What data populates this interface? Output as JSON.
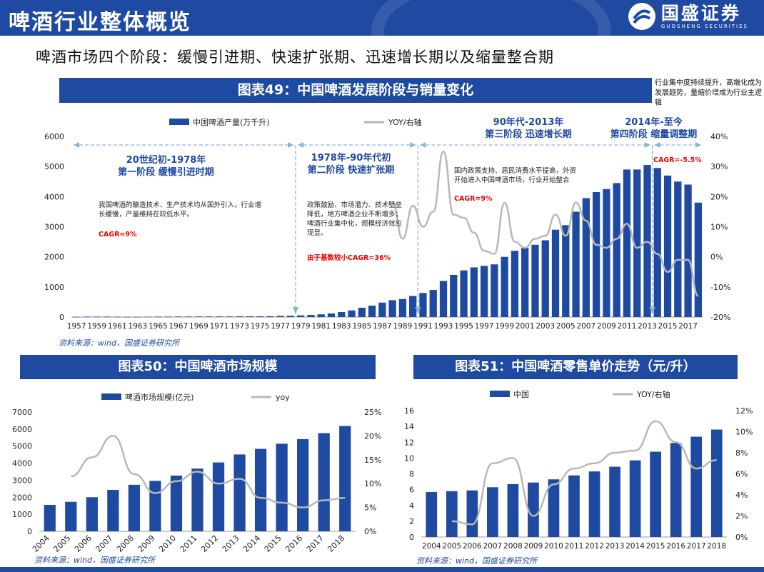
{
  "header": {
    "title": "啤酒行业整体概览",
    "logo_name": "国盛证券",
    "logo_en": "GUOSHENG SECURITIES",
    "colors": {
      "brand": "#1f4aa1",
      "accent_red": "#e00000",
      "line": "#b8b8b8"
    }
  },
  "subtitle": "啤酒市场四个阶段：缓慢引进期、快速扩张期、迅速增长期以及缩量整合期",
  "side_note": "行业集中度持续提升，高端化成为发展趋势，量缩价增成为行业主逻辑",
  "fig49": {
    "banner": "图表49：中国啤酒发展阶段与销量变化",
    "source": "资料来源：wind，国盛证券研究所",
    "stages": [
      {
        "title": "20世纪初-1978年",
        "sub": "第一阶段 缓慢引进时期",
        "note": "我国啤酒的酿造技术、生产技术均从国外引入，行业增长缓慢，产量维持在较低水平。",
        "cagr": "CAGR=9%"
      },
      {
        "title": "1978年-90年代初",
        "sub": "第二阶段 快速扩张期",
        "note": "政策鼓励、市场潜力、技术壁垒降低，地方啤酒企业不断增多；啤酒行业集中化，规模经济效应现显。",
        "cagr": "由于基数较小CAGR=36%"
      },
      {
        "title": "90年代-2013年",
        "sub": "第三阶段 迅速增长期",
        "note": "国内政策支持、居民消费水平提高，外资开始进入中国啤酒市场，行业开始整合",
        "cagr": "CAGR=9%"
      },
      {
        "title": "2014年-至今",
        "sub": "第四阶段 缩量调整期",
        "note": "",
        "cagr": "CAGR=-5.5%"
      }
    ]
  },
  "fig50": {
    "banner": "图表50：中国啤酒市场规模",
    "source": "资料来源：wind，国盛证券研究所"
  },
  "fig51": {
    "banner": "图表51：中国啤酒零售单价走势（元/升）",
    "source": "资料来源：wind，国盛证券研究所"
  },
  "chart_data": [
    {
      "type": "bar",
      "title": "图表49：中国啤酒发展阶段与销量变化",
      "categories": [
        1957,
        1958,
        1959,
        1960,
        1961,
        1962,
        1963,
        1964,
        1965,
        1966,
        1967,
        1968,
        1969,
        1970,
        1971,
        1972,
        1973,
        1974,
        1975,
        1976,
        1977,
        1978,
        1979,
        1980,
        1981,
        1982,
        1983,
        1984,
        1985,
        1986,
        1987,
        1988,
        1989,
        1990,
        1991,
        1992,
        1993,
        1994,
        1995,
        1996,
        1997,
        1998,
        1999,
        2000,
        2001,
        2002,
        2003,
        2004,
        2005,
        2006,
        2007,
        2008,
        2009,
        2010,
        2011,
        2012,
        2013,
        2014,
        2015,
        2016,
        2017,
        2018
      ],
      "x_tick_labels": [
        "1957",
        "1959",
        "1961",
        "1963",
        "1965",
        "1967",
        "1969",
        "1971",
        "1973",
        "1975",
        "1977",
        "1979",
        "1981",
        "1983",
        "1985",
        "1987",
        "1989",
        "1991",
        "1993",
        "1995",
        "1997",
        "1999",
        "2001",
        "2003",
        "2005",
        "2007",
        "2009",
        "2011",
        "2013",
        "2015",
        "2017"
      ],
      "series": [
        {
          "name": "中国啤酒产量(万千升)",
          "type": "bar",
          "axis": "left",
          "values": [
            10,
            15,
            15,
            15,
            10,
            10,
            10,
            12,
            15,
            15,
            18,
            18,
            20,
            20,
            20,
            20,
            25,
            25,
            25,
            30,
            40,
            45,
            55,
            70,
            90,
            120,
            165,
            220,
            310,
            380,
            480,
            560,
            600,
            700,
            800,
            900,
            1200,
            1400,
            1550,
            1650,
            1700,
            1750,
            2000,
            2200,
            2300,
            2400,
            2550,
            2900,
            3050,
            3500,
            3950,
            4150,
            4250,
            4450,
            4900,
            4900,
            5050,
            4950,
            4700,
            4500,
            4400,
            3800
          ]
        },
        {
          "name": "YOY/右轴",
          "type": "line",
          "axis": "right",
          "values": [
            null,
            null,
            null,
            null,
            null,
            null,
            null,
            null,
            null,
            null,
            null,
            null,
            null,
            null,
            null,
            null,
            null,
            null,
            null,
            null,
            null,
            null,
            null,
            null,
            null,
            null,
            null,
            null,
            null,
            null,
            null,
            null,
            null,
            null,
            null,
            null,
            null,
            null,
            null,
            null,
            null,
            null,
            null,
            null,
            null,
            null,
            null,
            null,
            null,
            null,
            null,
            null,
            null,
            null,
            null,
            null,
            null,
            null,
            null,
            null,
            null,
            null
          ]
        }
      ],
      "yoy_points": [
        {
          "x": 1988,
          "y": 18
        },
        {
          "x": 1989,
          "y": 6
        },
        {
          "x": 1990,
          "y": 17
        },
        {
          "x": 1991,
          "y": 10
        },
        {
          "x": 1992,
          "y": 15
        },
        {
          "x": 1993,
          "y": 35
        },
        {
          "x": 1994,
          "y": 14
        },
        {
          "x": 1995,
          "y": 13
        },
        {
          "x": 1996,
          "y": 8
        },
        {
          "x": 1997,
          "y": 2
        },
        {
          "x": 1998,
          "y": 1
        },
        {
          "x": 1999,
          "y": 18
        },
        {
          "x": 2000,
          "y": 5
        },
        {
          "x": 2001,
          "y": 3
        },
        {
          "x": 2002,
          "y": 6
        },
        {
          "x": 2003,
          "y": 7
        },
        {
          "x": 2004,
          "y": 14
        },
        {
          "x": 2005,
          "y": 7
        },
        {
          "x": 2006,
          "y": 18
        },
        {
          "x": 2007,
          "y": 12
        },
        {
          "x": 2008,
          "y": 4
        },
        {
          "x": 2009,
          "y": 3
        },
        {
          "x": 2010,
          "y": 6
        },
        {
          "x": 2011,
          "y": 11
        },
        {
          "x": 2012,
          "y": 3
        },
        {
          "x": 2013,
          "y": 5
        },
        {
          "x": 2014,
          "y": 1
        },
        {
          "x": 2015,
          "y": -5
        },
        {
          "x": 2016,
          "y": -1
        },
        {
          "x": 2017,
          "y": -1
        },
        {
          "x": 2018,
          "y": -13
        }
      ],
      "ylim": [
        0,
        6000
      ],
      "y2lim": [
        -20,
        40
      ],
      "y_ticks": [
        0,
        1000,
        2000,
        3000,
        4000,
        5000,
        6000
      ],
      "y2_ticks": [
        "-20%",
        "-10%",
        "0%",
        "10%",
        "20%",
        "30%",
        "40%"
      ],
      "stage_dividers": [
        1978,
        1990,
        2013
      ],
      "legend": "top"
    },
    {
      "type": "bar",
      "title": "图表50：中国啤酒市场规模",
      "categories": [
        "2004",
        "2005",
        "2006",
        "2007",
        "2008",
        "2009",
        "2010",
        "2011",
        "2012",
        "2013",
        "2014",
        "2015",
        "2016",
        "2017",
        "2018"
      ],
      "series": [
        {
          "name": "啤酒市场规模(亿元)",
          "type": "bar",
          "axis": "left",
          "values": [
            1550,
            1730,
            2000,
            2430,
            2730,
            2960,
            3270,
            3680,
            4040,
            4510,
            4840,
            5140,
            5410,
            5760,
            6180
          ]
        },
        {
          "name": "yoy",
          "type": "line",
          "axis": "right",
          "values": [
            null,
            11.5,
            15.5,
            20,
            12,
            8,
            10.5,
            12.5,
            10,
            11,
            7,
            6,
            5,
            6.5,
            7
          ]
        }
      ],
      "ylim": [
        0,
        7000
      ],
      "y2lim": [
        0,
        25
      ],
      "y_ticks": [
        0,
        1000,
        2000,
        3000,
        4000,
        5000,
        6000,
        7000
      ],
      "y2_ticks": [
        "0%",
        "5%",
        "10%",
        "15%",
        "20%",
        "25%"
      ],
      "legend": "top"
    },
    {
      "type": "bar",
      "title": "图表51：中国啤酒零售单价走势（元/升）",
      "categories": [
        "2004",
        "2005",
        "2006",
        "2007",
        "2008",
        "2009",
        "2010",
        "2011",
        "2012",
        "2013",
        "2014",
        "2015",
        "2016",
        "2017",
        "2018"
      ],
      "series": [
        {
          "name": "中国",
          "type": "bar",
          "axis": "left",
          "values": [
            5.7,
            5.8,
            5.9,
            6.3,
            6.7,
            6.9,
            7.3,
            7.8,
            8.3,
            8.9,
            9.7,
            10.8,
            11.9,
            12.7,
            13.6
          ]
        },
        {
          "name": "YOY/右轴",
          "type": "line",
          "axis": "right",
          "values": [
            null,
            1.5,
            1.2,
            7,
            7.5,
            2,
            5,
            6.5,
            7,
            8,
            8.2,
            11,
            9,
            6.5,
            7.3
          ]
        }
      ],
      "ylim": [
        0,
        16
      ],
      "y2lim": [
        0,
        12
      ],
      "y_ticks": [
        0,
        2,
        4,
        6,
        8,
        10,
        12,
        14,
        16
      ],
      "y2_ticks": [
        "0%",
        "2%",
        "4%",
        "6%",
        "8%",
        "10%",
        "12%"
      ],
      "legend": "top"
    }
  ]
}
